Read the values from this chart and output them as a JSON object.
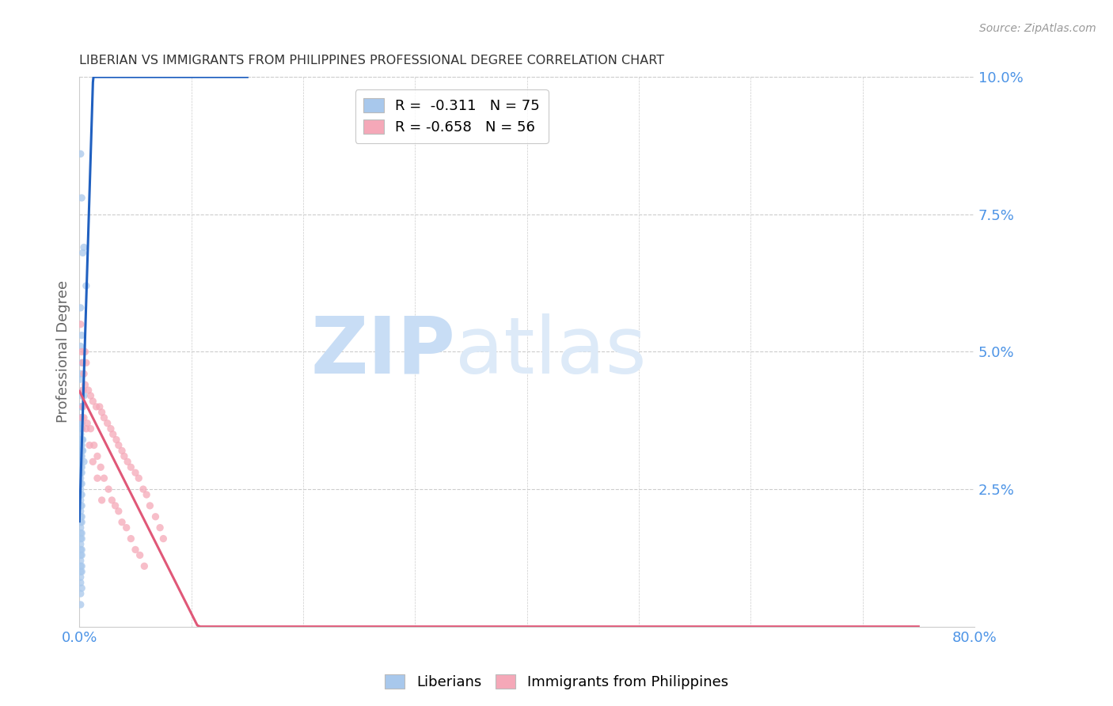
{
  "title": "LIBERIAN VS IMMIGRANTS FROM PHILIPPINES PROFESSIONAL DEGREE CORRELATION CHART",
  "source": "Source: ZipAtlas.com",
  "ylabel": "Professional Degree",
  "liberian_color": "#a8c8ec",
  "philippines_color": "#f5a8b8",
  "liberian_line_color": "#2060c0",
  "philippines_line_color": "#e05878",
  "liberian_scatter": {
    "x": [
      0.001,
      0.004,
      0.006,
      0.002,
      0.003,
      0.001,
      0.002,
      0.003,
      0.004,
      0.001,
      0.002,
      0.003,
      0.001,
      0.002,
      0.001,
      0.002,
      0.001,
      0.002,
      0.001,
      0.002,
      0.003,
      0.001,
      0.002,
      0.001,
      0.002,
      0.003,
      0.004,
      0.001,
      0.002,
      0.001,
      0.002,
      0.001,
      0.002,
      0.001,
      0.001,
      0.002,
      0.001,
      0.001,
      0.002,
      0.001,
      0.001,
      0.002,
      0.001,
      0.001,
      0.002,
      0.001,
      0.001,
      0.001,
      0.002,
      0.001,
      0.002,
      0.001,
      0.002,
      0.001,
      0.001,
      0.002,
      0.001,
      0.002,
      0.001,
      0.001,
      0.002,
      0.001,
      0.002,
      0.001,
      0.001,
      0.002,
      0.001,
      0.002,
      0.001,
      0.001,
      0.001,
      0.002,
      0.001,
      0.001,
      0.001
    ],
    "y": [
      0.086,
      0.069,
      0.062,
      0.078,
      0.068,
      0.058,
      0.053,
      0.048,
      0.042,
      0.051,
      0.048,
      0.043,
      0.046,
      0.042,
      0.045,
      0.04,
      0.04,
      0.037,
      0.038,
      0.036,
      0.034,
      0.038,
      0.036,
      0.037,
      0.034,
      0.032,
      0.03,
      0.035,
      0.033,
      0.034,
      0.032,
      0.033,
      0.031,
      0.032,
      0.031,
      0.029,
      0.03,
      0.03,
      0.028,
      0.029,
      0.028,
      0.026,
      0.027,
      0.026,
      0.024,
      0.025,
      0.024,
      0.023,
      0.022,
      0.022,
      0.02,
      0.021,
      0.019,
      0.02,
      0.019,
      0.017,
      0.018,
      0.016,
      0.017,
      0.016,
      0.014,
      0.015,
      0.013,
      0.014,
      0.013,
      0.011,
      0.012,
      0.01,
      0.011,
      0.01,
      0.009,
      0.007,
      0.008,
      0.006,
      0.004
    ]
  },
  "philippines_scatter": {
    "x": [
      0.001,
      0.002,
      0.003,
      0.004,
      0.005,
      0.006,
      0.003,
      0.005,
      0.008,
      0.01,
      0.012,
      0.015,
      0.018,
      0.02,
      0.022,
      0.025,
      0.028,
      0.03,
      0.033,
      0.035,
      0.038,
      0.04,
      0.043,
      0.046,
      0.05,
      0.053,
      0.057,
      0.06,
      0.063,
      0.068,
      0.072,
      0.075,
      0.002,
      0.004,
      0.007,
      0.01,
      0.013,
      0.016,
      0.019,
      0.022,
      0.026,
      0.029,
      0.032,
      0.035,
      0.038,
      0.042,
      0.046,
      0.05,
      0.054,
      0.058,
      0.003,
      0.006,
      0.009,
      0.012,
      0.016,
      0.02
    ],
    "y": [
      0.055,
      0.05,
      0.048,
      0.046,
      0.05,
      0.048,
      0.043,
      0.044,
      0.043,
      0.042,
      0.041,
      0.04,
      0.04,
      0.039,
      0.038,
      0.037,
      0.036,
      0.035,
      0.034,
      0.033,
      0.032,
      0.031,
      0.03,
      0.029,
      0.028,
      0.027,
      0.025,
      0.024,
      0.022,
      0.02,
      0.018,
      0.016,
      0.038,
      0.038,
      0.037,
      0.036,
      0.033,
      0.031,
      0.029,
      0.027,
      0.025,
      0.023,
      0.022,
      0.021,
      0.019,
      0.018,
      0.016,
      0.014,
      0.013,
      0.011,
      0.04,
      0.036,
      0.033,
      0.03,
      0.027,
      0.023
    ]
  },
  "xlim": [
    0.0,
    0.8
  ],
  "ylim": [
    0.0,
    0.1
  ],
  "watermark_zip": "ZIP",
  "watermark_atlas": "atlas",
  "background_color": "#ffffff",
  "grid_color": "#cccccc",
  "title_color": "#333333",
  "axis_color": "#4d94e6",
  "scatter_alpha": 0.75,
  "scatter_size": 45,
  "legend_r1_label": "R =  -0.311   N = 75",
  "legend_r2_label": "R = -0.658   N = 56",
  "bottom_legend_lib": "Liberians",
  "bottom_legend_phi": "Immigrants from Philippines"
}
